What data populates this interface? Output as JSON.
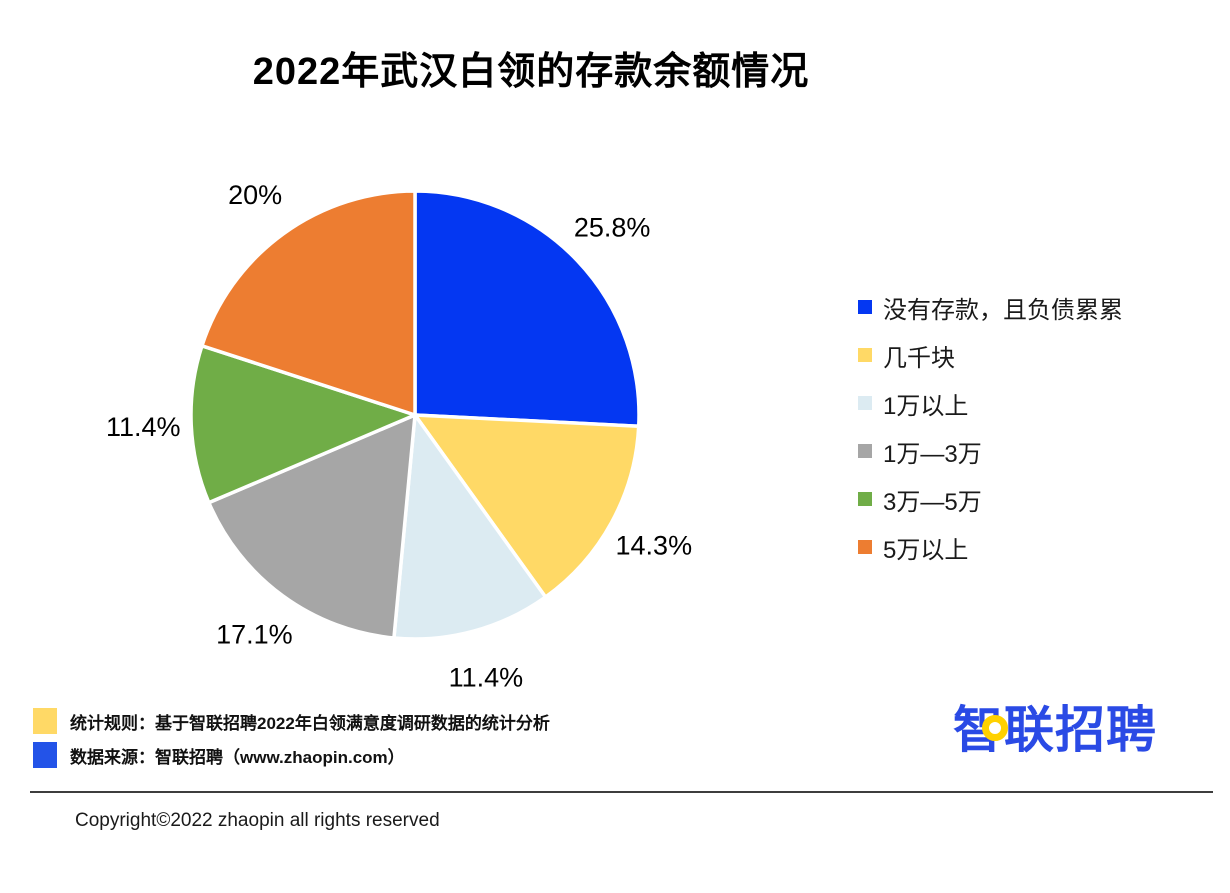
{
  "title": "2022年武汉白领的存款余额情况",
  "chart_data": {
    "type": "pie",
    "title": "2022年武汉白领的存款余额情况",
    "categories": [
      "没有存款，且负债累累",
      "几千块",
      "1万以上",
      "1万—3万",
      "3万—5万",
      "5万以上"
    ],
    "values": [
      25.8,
      14.3,
      11.4,
      17.1,
      11.4,
      20
    ],
    "data_labels": [
      "25.8%",
      "14.3%",
      "11.4%",
      "17.1%",
      "11.4%",
      "20%"
    ],
    "colors": [
      "#0437F2",
      "#FFD966",
      "#DCEBF2",
      "#A6A6A6",
      "#70AD47",
      "#ED7D31"
    ],
    "start_angle_deg": 0,
    "direction": "clockwise",
    "slice_gap_color": "#ffffff",
    "legend_position": "right"
  },
  "legend": {
    "items": [
      {
        "label": "没有存款，且负债累累",
        "color": "#0437F2"
      },
      {
        "label": "几千块",
        "color": "#FFD966"
      },
      {
        "label": "1万以上",
        "color": "#DCEBF2"
      },
      {
        "label": "1万—3万",
        "color": "#A6A6A6"
      },
      {
        "label": "3万—5万",
        "color": "#70AD47"
      },
      {
        "label": "5万以上",
        "color": "#ED7D31"
      }
    ]
  },
  "footnotes": {
    "stat_rule": {
      "swatch_color": "#FFD966",
      "text": "统计规则：基于智联招聘2022年白领满意度调研数据的统计分析"
    },
    "data_source": {
      "swatch_color": "#2353E8",
      "text": "数据来源：智联招聘（www.zhaopin.com）"
    }
  },
  "footer": {
    "copyright": "Copyright©2022 zhaopin all rights reserved"
  },
  "logo": {
    "text": "智联招聘",
    "color": "#2A4AE5",
    "accent_color": "#FFD100"
  }
}
